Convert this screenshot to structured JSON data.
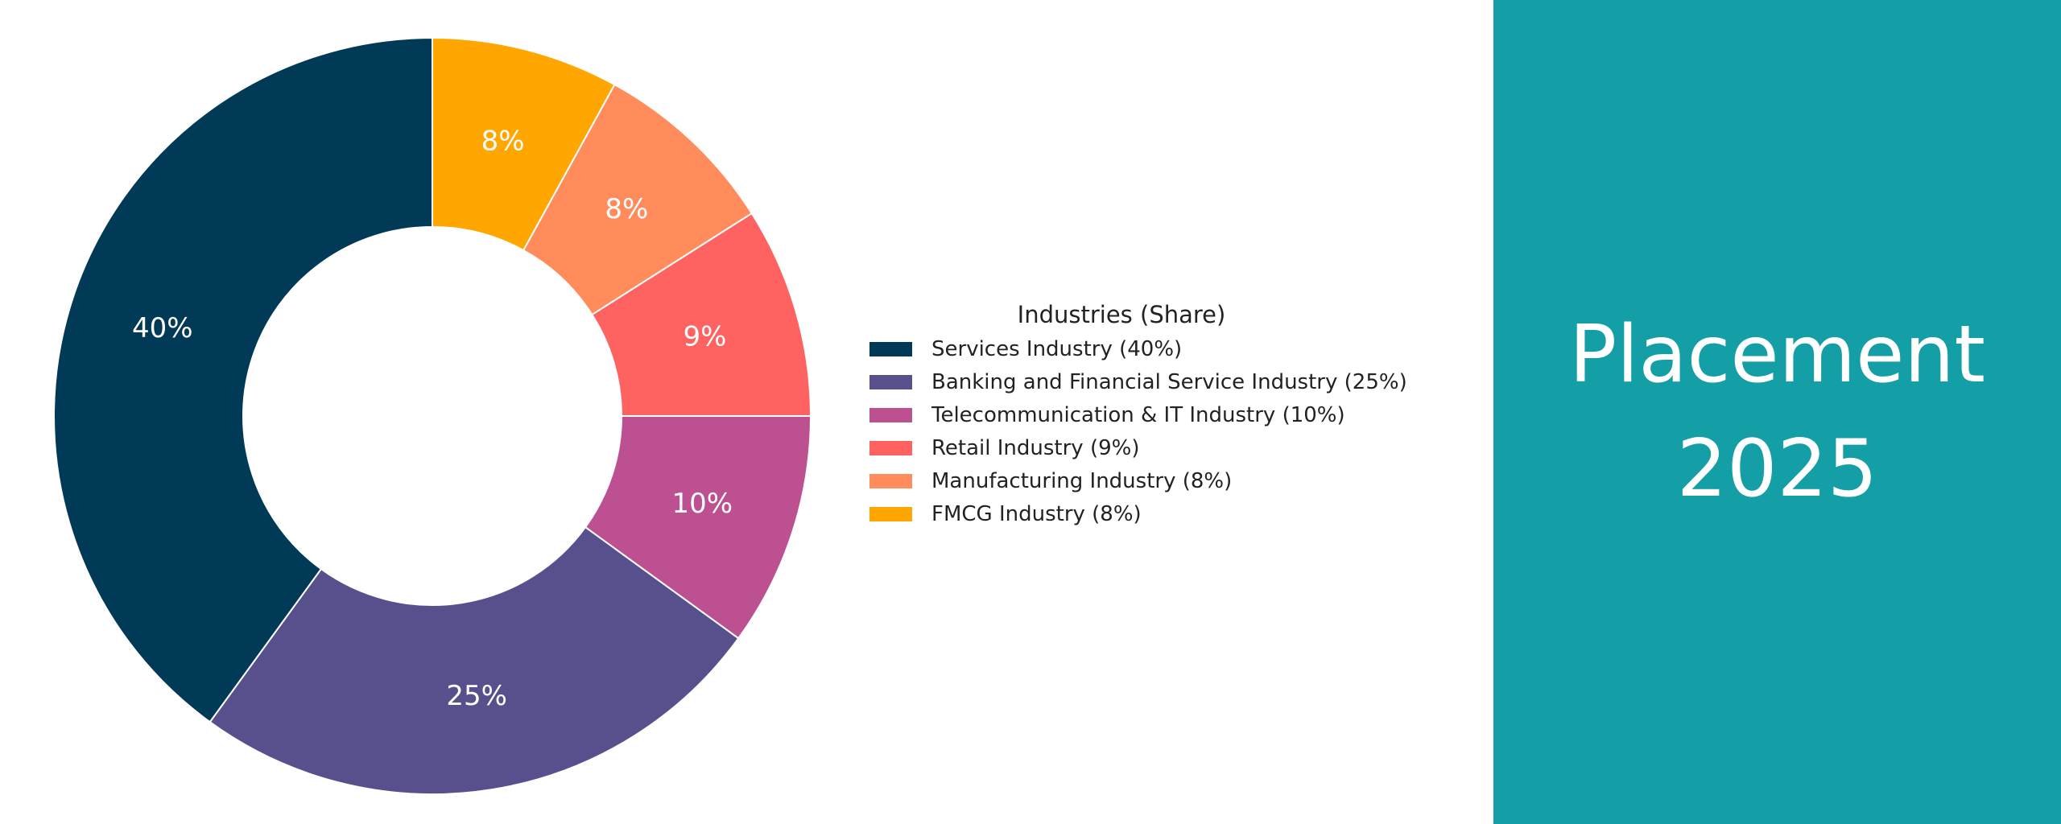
{
  "chart_data": {
    "type": "pie",
    "variant": "donut",
    "categories": [
      "Services Industry (40%)",
      "Banking and Financial Service Industry (25%)",
      "Telecommunication & IT Industry (10%)",
      "Retail Industry (9%)",
      "Manufacturing Industry (8%)",
      "FMCG Industry (8%)"
    ],
    "values": [
      40,
      25,
      10,
      9,
      8,
      8
    ],
    "slice_labels": [
      "40%",
      "25%",
      "10%",
      "9%",
      "8%",
      "8%"
    ],
    "colors": [
      "#003a57",
      "#58508d",
      "#bc5090",
      "#ff6361",
      "#ff8c5a",
      "#ffa600"
    ],
    "legend": {
      "title": "Industries (Share)",
      "placement": "right"
    }
  },
  "panel": {
    "background": "#139fa5",
    "title_line1": "Placement",
    "title_line2": "2025"
  }
}
